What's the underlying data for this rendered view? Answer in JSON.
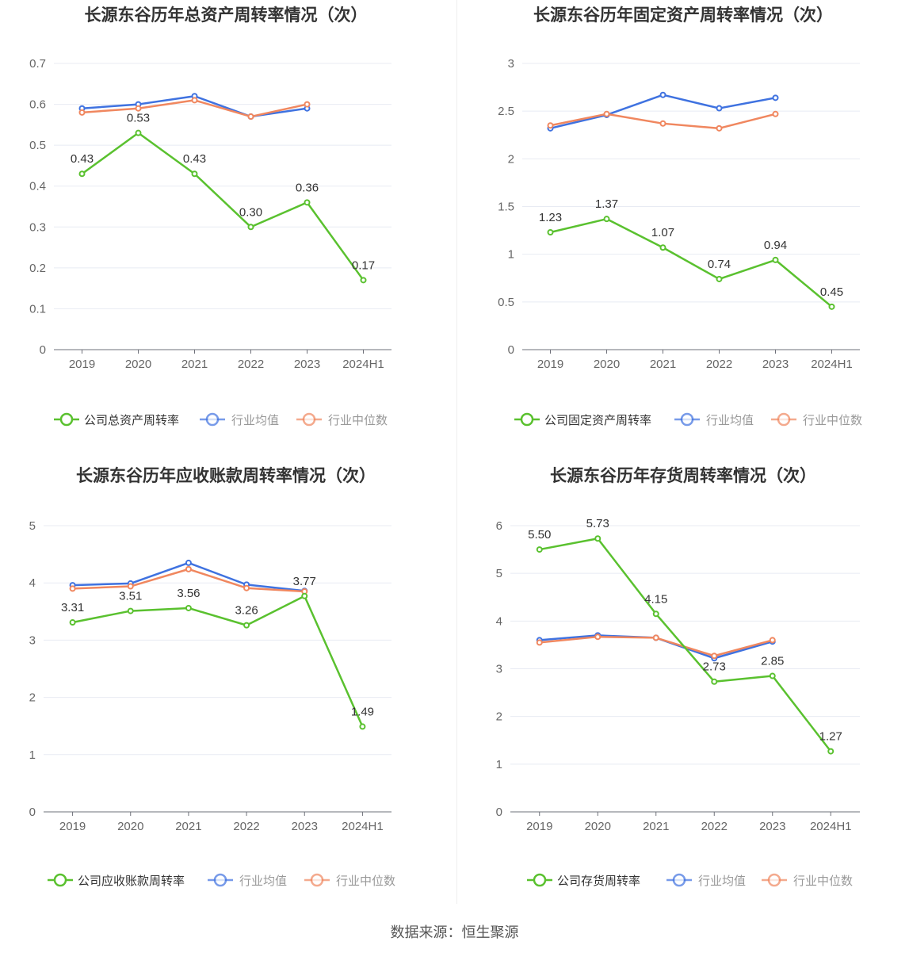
{
  "chart_data": [
    {
      "type": "line",
      "title": "长源东谷历年总资产周转率情况（次）",
      "categories": [
        "2019",
        "2020",
        "2021",
        "2022",
        "2023",
        "2024H1"
      ],
      "ylim": [
        0,
        0.7
      ],
      "yticks": [
        0,
        0.1,
        0.2,
        0.3,
        0.4,
        0.5,
        0.6,
        0.7
      ],
      "ytick_labels": [
        "0",
        "0.1",
        "0.2",
        "0.3",
        "0.4",
        "0.5",
        "0.6",
        "0.7"
      ],
      "series": [
        {
          "name": "公司总资产周转率",
          "color": "#5ac12f",
          "values": [
            0.43,
            0.53,
            0.43,
            0.3,
            0.36,
            0.17
          ],
          "labels": [
            "0.43",
            "0.53",
            "0.43",
            "0.30",
            "0.36",
            "0.17"
          ]
        },
        {
          "name": "行业均值",
          "color": "#3f72e0",
          "values": [
            0.59,
            0.6,
            0.62,
            0.57,
            0.59,
            null
          ]
        },
        {
          "name": "行业中位数",
          "color": "#f0875f",
          "values": [
            0.58,
            0.59,
            0.61,
            0.57,
            0.6,
            null
          ]
        }
      ]
    },
    {
      "type": "line",
      "title": "长源东谷历年固定资产周转率情况（次）",
      "categories": [
        "2019",
        "2020",
        "2021",
        "2022",
        "2023",
        "2024H1"
      ],
      "ylim": [
        0,
        3
      ],
      "yticks": [
        0,
        0.5,
        1,
        1.5,
        2,
        2.5,
        3
      ],
      "ytick_labels": [
        "0",
        "0.5",
        "1",
        "1.5",
        "2",
        "2.5",
        "3"
      ],
      "series": [
        {
          "name": "公司固定资产周转率",
          "color": "#5ac12f",
          "values": [
            1.23,
            1.37,
            1.07,
            0.74,
            0.94,
            0.45
          ],
          "labels": [
            "1.23",
            "1.37",
            "1.07",
            "0.74",
            "0.94",
            "0.45"
          ]
        },
        {
          "name": "行业均值",
          "color": "#3f72e0",
          "values": [
            2.32,
            2.46,
            2.67,
            2.53,
            2.64,
            null
          ]
        },
        {
          "name": "行业中位数",
          "color": "#f0875f",
          "values": [
            2.35,
            2.47,
            2.37,
            2.32,
            2.47,
            null
          ]
        }
      ]
    },
    {
      "type": "line",
      "title": "长源东谷历年应收账款周转率情况（次）",
      "categories": [
        "2019",
        "2020",
        "2021",
        "2022",
        "2023",
        "2024H1"
      ],
      "ylim": [
        0,
        5
      ],
      "yticks": [
        0,
        1,
        2,
        3,
        4,
        5
      ],
      "ytick_labels": [
        "0",
        "1",
        "2",
        "3",
        "4",
        "5"
      ],
      "series": [
        {
          "name": "公司应收账款周转率",
          "color": "#5ac12f",
          "values": [
            3.31,
            3.51,
            3.56,
            3.26,
            3.77,
            1.49
          ],
          "labels": [
            "3.31",
            "3.51",
            "3.56",
            "3.26",
            "3.77",
            "1.49"
          ]
        },
        {
          "name": "行业均值",
          "color": "#3f72e0",
          "values": [
            3.96,
            3.99,
            4.35,
            3.97,
            3.86,
            null
          ]
        },
        {
          "name": "行业中位数",
          "color": "#f0875f",
          "values": [
            3.9,
            3.94,
            4.24,
            3.91,
            3.85,
            null
          ]
        }
      ]
    },
    {
      "type": "line",
      "title": "长源东谷历年存货周转率情况（次）",
      "categories": [
        "2019",
        "2020",
        "2021",
        "2022",
        "2023",
        "2024H1"
      ],
      "ylim": [
        0,
        6
      ],
      "yticks": [
        0,
        1,
        2,
        3,
        4,
        5,
        6
      ],
      "ytick_labels": [
        "0",
        "1",
        "2",
        "3",
        "4",
        "5",
        "6"
      ],
      "series": [
        {
          "name": "公司存货周转率",
          "color": "#5ac12f",
          "values": [
            5.5,
            5.73,
            4.15,
            2.73,
            2.85,
            1.27
          ],
          "labels": [
            "5.50",
            "5.73",
            "4.15",
            "2.73",
            "2.85",
            "1.27"
          ]
        },
        {
          "name": "行业均值",
          "color": "#3f72e0",
          "values": [
            3.6,
            3.7,
            3.65,
            3.22,
            3.57,
            null
          ]
        },
        {
          "name": "行业中位数",
          "color": "#f0875f",
          "values": [
            3.55,
            3.67,
            3.65,
            3.27,
            3.6,
            null
          ]
        }
      ]
    }
  ],
  "footer": {
    "source": "数据来源：恒生聚源"
  }
}
